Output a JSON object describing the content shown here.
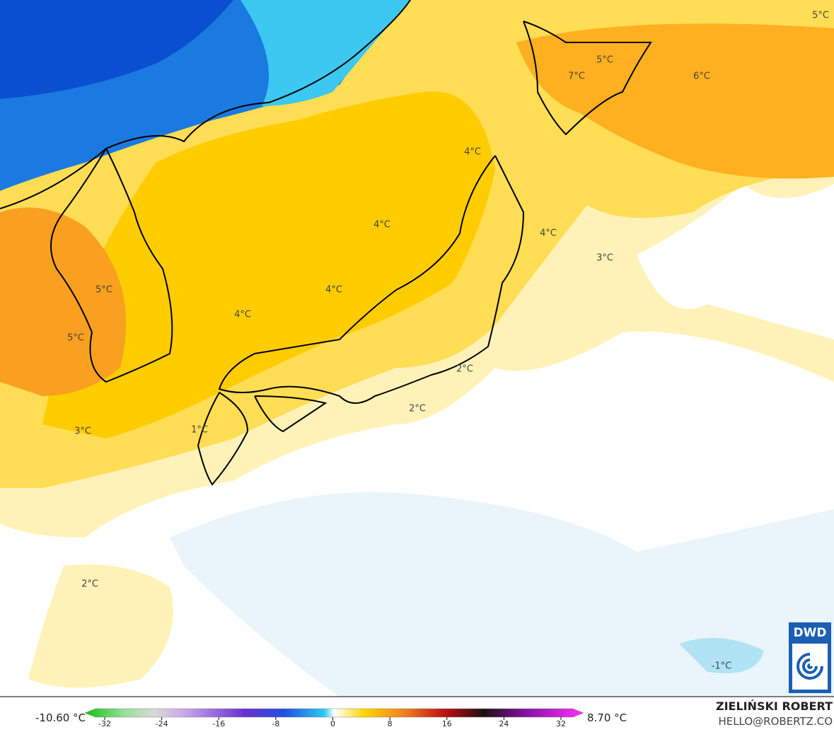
{
  "map": {
    "labels": [
      "5°C",
      "5°C",
      "7°C",
      "6°C",
      "4°C",
      "4°C",
      "4°C",
      "3°C",
      "5°C",
      "4°C",
      "4°C",
      "5°C",
      "2°C",
      "2°C",
      "3°C",
      "1°C",
      "2°C",
      "-1°C"
    ]
  },
  "colorbar": {
    "min_label": "-10.60 °C",
    "max_label": "8.70 °C",
    "ticks": [
      -32,
      -24,
      -16,
      -8,
      0,
      8,
      16,
      24,
      32
    ]
  },
  "credit": {
    "author": "ZIELIŃSKI ROBERT",
    "email": "HELLO@ROBERTZ.CO",
    "logo": "DWD"
  }
}
